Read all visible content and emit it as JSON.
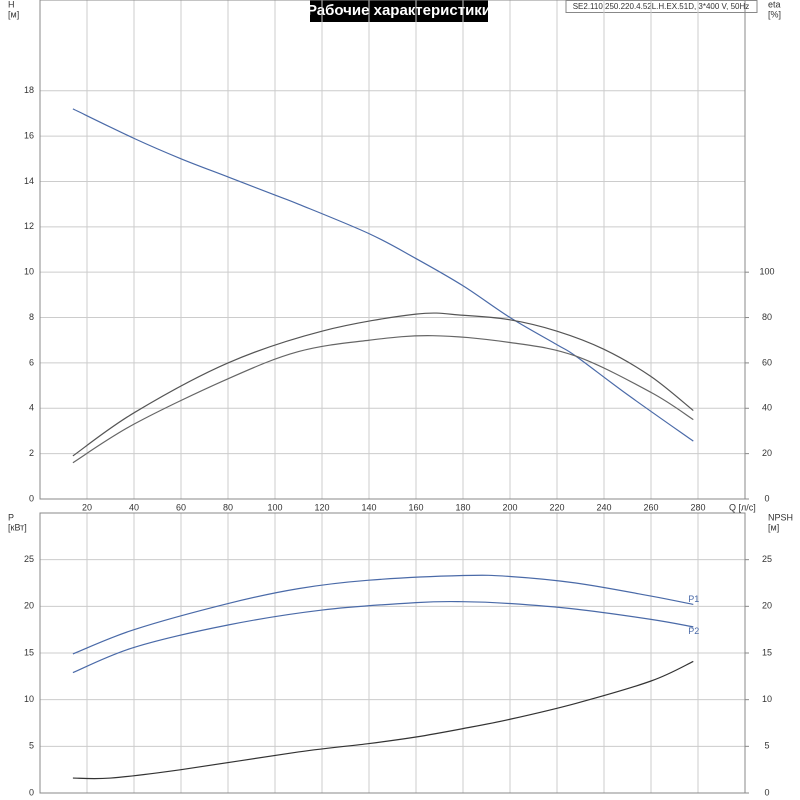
{
  "chart_data": [
    {
      "type": "line",
      "title": "Рабочие характеристики",
      "subtitle": "SE2.110.250.220.4.52L.H.EX.51D, 3*400 V, 50Hz",
      "ylabel": "H",
      "yunit": "[м]",
      "y2label": "eta",
      "y2unit": "[%]",
      "xlabel": "Q [л/с]",
      "xlim": [
        0,
        300
      ],
      "xticks": [
        20,
        40,
        60,
        80,
        100,
        120,
        140,
        160,
        180,
        200,
        220,
        240,
        260,
        280
      ],
      "ylim": [
        0,
        22
      ],
      "yticks": [
        0,
        2,
        4,
        6,
        8,
        10,
        12,
        14,
        16,
        18
      ],
      "y2lim": [
        0,
        220
      ],
      "y2ticks": [
        0,
        20,
        40,
        60,
        80,
        100
      ],
      "grid": true,
      "series": [
        {
          "color": "#4a6aa8",
          "x": [
            14,
            40,
            60,
            80,
            100,
            110,
            140,
            160,
            180,
            200,
            220,
            228,
            250,
            278
          ],
          "values": [
            17.2,
            15.9,
            15.0,
            14.2,
            13.4,
            13.0,
            11.7,
            10.6,
            9.4,
            8.0,
            6.8,
            6.3,
            4.6,
            2.55
          ]
        },
        {
          "color": "#555555",
          "axis": "y2",
          "x": [
            14,
            40,
            80,
            120,
            160,
            180,
            200,
            220,
            240,
            260,
            278
          ],
          "values": [
            19,
            38,
            60,
            74,
            81.5,
            81,
            79,
            74,
            66,
            54,
            39
          ]
        },
        {
          "color": "#666666",
          "axis": "y2",
          "x": [
            14,
            40,
            80,
            110,
            140,
            167,
            200,
            228,
            260,
            278
          ],
          "values": [
            16,
            33,
            53,
            65,
            70,
            72,
            69,
            63,
            47,
            35
          ]
        }
      ]
    },
    {
      "type": "line",
      "ylabel": "P",
      "yunit": "[кВт]",
      "y2label": "NPSH",
      "y2unit": "[м]",
      "xlim": [
        0,
        300
      ],
      "xticks": [
        20,
        40,
        60,
        80,
        100,
        120,
        140,
        160,
        180,
        200,
        220,
        240,
        260,
        280
      ],
      "ylim": [
        0,
        30
      ],
      "yticks": [
        0,
        5,
        10,
        15,
        20,
        25
      ],
      "y2lim": [
        0,
        30
      ],
      "y2ticks": [
        0,
        5,
        10,
        15,
        20,
        25
      ],
      "grid": true,
      "series": [
        {
          "name": "P1",
          "color": "#4a6aa8",
          "x": [
            14,
            40,
            80,
            110,
            140,
            180,
            200,
            228,
            260,
            278
          ],
          "values": [
            14.9,
            17.5,
            20.3,
            21.9,
            22.8,
            23.3,
            23.2,
            22.5,
            21.1,
            20.2
          ]
        },
        {
          "name": "P2",
          "color": "#4a6aa8",
          "x": [
            14,
            40,
            80,
            120,
            160,
            180,
            200,
            228,
            260,
            278
          ],
          "values": [
            12.9,
            15.6,
            18.0,
            19.6,
            20.4,
            20.5,
            20.3,
            19.7,
            18.6,
            17.8
          ]
        },
        {
          "color": "#333333",
          "axis": "y2",
          "x": [
            14,
            30,
            60,
            110,
            140,
            160,
            180,
            200,
            228,
            260,
            278
          ],
          "values": [
            1.6,
            1.6,
            2.5,
            4.4,
            5.3,
            6.0,
            6.9,
            7.9,
            9.6,
            12.0,
            14.1
          ]
        }
      ]
    }
  ]
}
